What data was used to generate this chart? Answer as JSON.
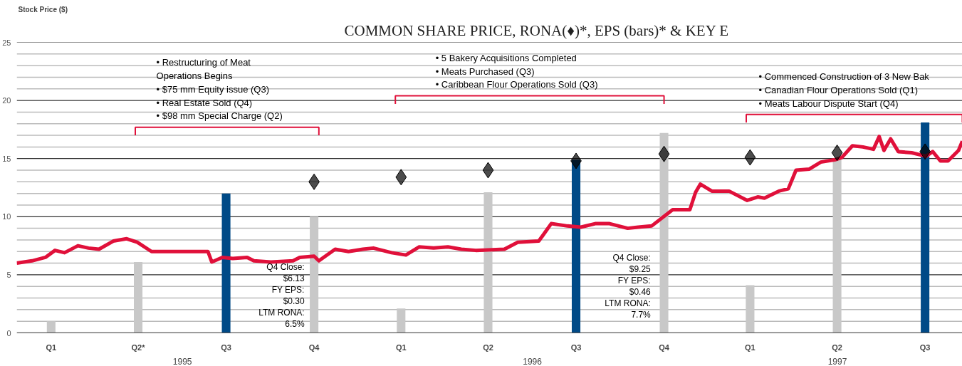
{
  "chart_data": {
    "type": "bar",
    "title": "COMMON SHARE PRICE, RONA(♦)*, EPS (bars)* & KEY E",
    "ylabel": "Stock Price ($)",
    "x": [
      "1995-03-31",
      "1995-06-30",
      "1995-09-30",
      "1995-12-31",
      "1996-03-31",
      "1996-06-30",
      "1996-09-30",
      "1996-12-31",
      "1997-03-31",
      "1997-06-30",
      "1997-09-30"
    ],
    "xlim": [
      "1995-02-23",
      "1997-11-08"
    ],
    "xticks": [
      {
        "value": "1995-03-31",
        "label": "Q1"
      },
      {
        "value": "1995-06-30",
        "label": "Q2*"
      },
      {
        "value": "1995-09-30",
        "label": "Q3"
      },
      {
        "value": "1995-12-31",
        "label": "Q4"
      },
      {
        "value": "1996-03-31",
        "label": "Q1"
      },
      {
        "value": "1996-06-30",
        "label": "Q2"
      },
      {
        "value": "1996-09-30",
        "label": "Q3"
      },
      {
        "value": "1996-12-31",
        "label": "Q4"
      },
      {
        "value": "1997-03-31",
        "label": "Q1"
      },
      {
        "value": "1997-06-30",
        "label": "Q2"
      },
      {
        "value": "1997-09-30",
        "label": "Q3"
      }
    ],
    "ylim": [
      0,
      25
    ],
    "yticks": [
      0,
      {
        "value": 1,
        "label": null
      },
      {
        "value": 2,
        "label": null
      },
      {
        "value": 3,
        "label": null
      },
      {
        "value": 4,
        "label": null
      },
      5,
      {
        "value": 6,
        "label": null
      },
      {
        "value": 7,
        "label": null
      },
      {
        "value": 8,
        "label": null
      },
      {
        "value": 9,
        "label": null
      },
      10,
      {
        "value": 11,
        "label": null
      },
      {
        "value": 12,
        "label": null
      },
      {
        "value": 13,
        "label": null
      },
      {
        "value": 14,
        "label": null
      },
      15,
      {
        "value": 16,
        "label": null
      },
      {
        "value": 17,
        "label": null
      },
      {
        "value": 18,
        "label": null
      },
      {
        "value": 19,
        "label": null
      },
      20,
      {
        "value": 21,
        "label": null
      },
      {
        "value": 22,
        "label": null
      },
      {
        "value": 23,
        "label": null
      },
      {
        "value": 24,
        "label": null
      },
      25
    ],
    "grid": "y",
    "series": [
      {
        "values": [
          1.0,
          6.1,
          12.0,
          10.0,
          2.1,
          12.1,
          14.9,
          17.2,
          4.1,
          15.0,
          18.1
        ],
        "colors": [
          "#c8c8c8",
          "#c8c8c8",
          "#004a87",
          "#c8c8c8",
          "#c8c8c8",
          "#c8c8c8",
          "#004a87",
          "#c8c8c8",
          "#c8c8c8",
          "#c8c8c8",
          "#004a87"
        ]
      },
      {
        "type": "scatter",
        "marker": "diamond",
        "color": "#000000",
        "x": [
          "1995-12-31",
          "1996-03-31",
          "1996-06-30",
          "1996-09-30",
          "1996-12-31",
          "1997-03-31",
          "1997-06-30",
          "1997-09-30"
        ],
        "values": [
          13.0,
          13.4,
          14.0,
          14.8,
          15.4,
          15.1,
          15.5,
          15.6
        ]
      },
      {
        "type": "line",
        "color": "#e0103a",
        "x": [
          "1995-02-23",
          "1995-03-11",
          "1995-03-25",
          "1995-04-04",
          "1995-04-14",
          "1995-04-28",
          "1995-05-09",
          "1995-05-20",
          "1995-06-04",
          "1995-06-18",
          "1995-06-29",
          "1995-07-14",
          "1995-08-06",
          "1995-08-28",
          "1995-09-11",
          "1995-09-15",
          "1995-09-26",
          "1995-10-07",
          "1995-10-22",
          "1995-10-29",
          "1995-11-16",
          "1995-12-09",
          "1995-12-16",
          "1995-12-31",
          "1996-01-05",
          "1996-01-22",
          "1996-02-05",
          "1996-02-20",
          "1996-03-02",
          "1996-03-21",
          "1996-04-05",
          "1996-04-19",
          "1996-05-04",
          "1996-05-19",
          "1996-06-02",
          "1996-06-17",
          "1996-07-17",
          "1996-07-31",
          "1996-08-22",
          "1996-09-04",
          "1996-09-21",
          "1996-10-05",
          "1996-10-20",
          "1996-11-04",
          "1996-11-23",
          "1996-12-04",
          "1996-12-18",
          "1997-01-09",
          "1997-01-27",
          "1997-02-02",
          "1997-02-07",
          "1997-02-19",
          "1997-03-09",
          "1997-03-28",
          "1997-04-08",
          "1997-04-15",
          "1997-04-30",
          "1997-05-10",
          "1997-05-18",
          "1997-06-01",
          "1997-06-13",
          "1997-06-28",
          "1997-07-05",
          "1997-07-16",
          "1997-07-27",
          "1997-08-07",
          "1997-08-13",
          "1997-08-18",
          "1997-08-25",
          "1997-09-02",
          "1997-09-16",
          "1997-10-01",
          "1997-10-08",
          "1997-10-16",
          "1997-10-24",
          "1997-11-04",
          "1997-11-08"
        ],
        "values": [
          6.0,
          6.2,
          6.5,
          7.1,
          6.9,
          7.5,
          7.3,
          7.2,
          7.9,
          8.1,
          7.8,
          7.0,
          7.0,
          7.0,
          7.0,
          6.1,
          6.5,
          6.4,
          6.5,
          6.2,
          6.1,
          6.2,
          6.5,
          6.6,
          6.2,
          7.2,
          7.0,
          7.2,
          7.3,
          6.9,
          6.7,
          7.4,
          7.3,
          7.4,
          7.2,
          7.1,
          7.2,
          7.8,
          7.9,
          9.4,
          9.2,
          9.1,
          9.4,
          9.4,
          9.0,
          9.1,
          9.2,
          10.6,
          10.6,
          12.1,
          12.8,
          12.2,
          12.2,
          11.4,
          11.7,
          11.6,
          12.2,
          12.4,
          14.0,
          14.1,
          14.7,
          14.9,
          15.1,
          16.1,
          16.0,
          15.8,
          16.9,
          15.7,
          16.7,
          15.6,
          15.5,
          15.2,
          15.6,
          14.8,
          14.8,
          15.7,
          16.5
        ]
      }
    ],
    "annotations": [
      "•   Restructuring of Meat\n     Operations Begins\n•   $75 mm Equity issue (Q3)\n•   Real Estate Sold (Q4)\n•   $98 mm Special Charge (Q2)",
      "•   5 Bakery Acquisitions Completed\n•   Meats Purchased (Q3)\n•   Caribbean Flour Operations Sold (Q3)",
      "•   Commenced Construction of 3 New Bak\n•   Canadian Flour Operations Sold (Q1)\n•   Meats Labour Dispute Start (Q4)",
      "Q4 Close:\n$6.13\nFY EPS:\n$0.30\nLTM RONA:\n6.5%",
      "Q4 Close:\n$9.25\nFY EPS:\n$0.46\nLTM RONA:\n7.7%",
      "1995",
      "1996",
      "1997"
    ]
  }
}
